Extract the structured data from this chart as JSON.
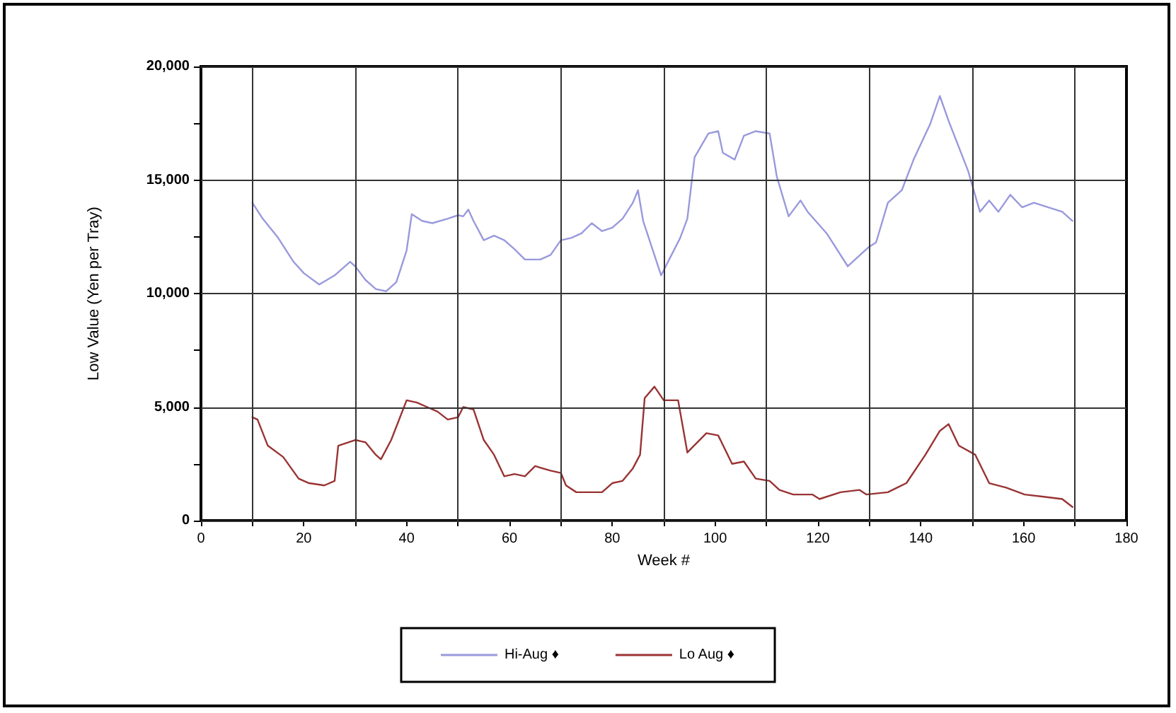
{
  "chart_data": {
    "type": "line",
    "xlabel": "Week #",
    "ylabel": "Low Value (Yen per Tray)",
    "xlim": [
      0,
      180
    ],
    "xticks": [
      0,
      {
        "value": 10,
        "label": null
      },
      20,
      {
        "value": 30,
        "label": null
      },
      40,
      {
        "value": 50,
        "label": null
      },
      60,
      {
        "value": 70,
        "label": null
      },
      80,
      {
        "value": 90,
        "label": null
      },
      100,
      {
        "value": 110,
        "label": null
      },
      120,
      {
        "value": 130,
        "label": null
      },
      140,
      {
        "value": 150,
        "label": null
      },
      160,
      {
        "value": 170,
        "label": null
      },
      180
    ],
    "ylim": [
      0,
      20000
    ],
    "yticks": [
      {
        "value": 0,
        "label": "0"
      },
      {
        "value": 2500,
        "label": null
      },
      {
        "value": 5000,
        "label": "5,000"
      },
      {
        "value": 7500,
        "label": null
      },
      {
        "value": 10000,
        "label": "10,000"
      },
      {
        "value": 12500,
        "label": null
      },
      {
        "value": 15000,
        "label": "15,000"
      },
      {
        "value": 17500,
        "label": null
      },
      {
        "value": 20000,
        "label": "20,000"
      }
    ],
    "grid": true,
    "legend": "bottom",
    "marker": "none",
    "line_style": "solid",
    "series": [
      {
        "name": "Hi-Aug ♦",
        "color": "#9999dd",
        "x": [
          10,
          12,
          15,
          18,
          20,
          23,
          26,
          29,
          30,
          32,
          34,
          36,
          38,
          40,
          41,
          43,
          45,
          48,
          50,
          51,
          52,
          53,
          55,
          57,
          59,
          61,
          63,
          66,
          68,
          70,
          72,
          74,
          76,
          78,
          80,
          82,
          84,
          85,
          86,
          89.5,
          93.2,
          94.6,
          96,
          98.7,
          100.6,
          101.5,
          103.8,
          105.6,
          107.9,
          110.6,
          112,
          114.3,
          116.6,
          118,
          121.7,
          125.8,
          129.9,
          131.3,
          133.6,
          136.3,
          138.6,
          141.8,
          143.7,
          145.5,
          149.2,
          151.5,
          153.3,
          155.1,
          157.4,
          159.7,
          162,
          164.8,
          167.5,
          169.5
        ],
        "values": [
          14000,
          13300,
          12460,
          11400,
          10900,
          10400,
          10800,
          11400,
          11200,
          10600,
          10200,
          10100,
          10500,
          11900,
          13500,
          13200,
          13100,
          13300,
          13450,
          13400,
          13700,
          13200,
          12350,
          12550,
          12350,
          11950,
          11500,
          11500,
          11700,
          12350,
          12450,
          12650,
          13100,
          12750,
          12900,
          13300,
          14000,
          14550,
          13200,
          10800,
          12450,
          13300,
          16000,
          17050,
          17150,
          16200,
          15900,
          16950,
          17150,
          17050,
          15150,
          13400,
          14100,
          13600,
          12650,
          11200,
          12050,
          12250,
          14000,
          14550,
          15900,
          17450,
          18700,
          17550,
          15400,
          13600,
          14100,
          13600,
          14350,
          13800,
          14000,
          13800,
          13600,
          13200
        ]
      },
      {
        "name": "Lo Aug ♦",
        "color": "#993333",
        "x": [
          10,
          11,
          13,
          16,
          19,
          21,
          24,
          26,
          26.7,
          30,
          32,
          34,
          35,
          37,
          40,
          42,
          44,
          46,
          48,
          50,
          51,
          53,
          55,
          57,
          59,
          61,
          63,
          65,
          68,
          70,
          71,
          73,
          75,
          78,
          80,
          82,
          84,
          85.4,
          86.3,
          88.2,
          90,
          92.8,
          94.6,
          98.3,
          100.6,
          103.3,
          105.6,
          107.9,
          110.6,
          112.5,
          115.2,
          118.9,
          120.3,
          124.4,
          128.1,
          129.4,
          133.6,
          137.2,
          140.9,
          143.7,
          145.4,
          147.4,
          150.6,
          153.3,
          156.6,
          160.2,
          163.9,
          167.5,
          169.5
        ],
        "values": [
          4550,
          4450,
          3300,
          2800,
          1850,
          1650,
          1550,
          1750,
          3300,
          3550,
          3450,
          2900,
          2700,
          3550,
          5300,
          5200,
          5000,
          4800,
          4450,
          4550,
          5000,
          4900,
          3550,
          2900,
          1950,
          2050,
          1950,
          2400,
          2200,
          2100,
          1550,
          1250,
          1250,
          1250,
          1650,
          1750,
          2300,
          2900,
          5400,
          5900,
          5300,
          5300,
          3000,
          3850,
          3750,
          2500,
          2600,
          1850,
          1750,
          1350,
          1150,
          1150,
          950,
          1250,
          1350,
          1150,
          1250,
          1650,
          2900,
          3950,
          4250,
          3300,
          2900,
          1650,
          1450,
          1150,
          1050,
          950,
          600
        ]
      }
    ]
  }
}
